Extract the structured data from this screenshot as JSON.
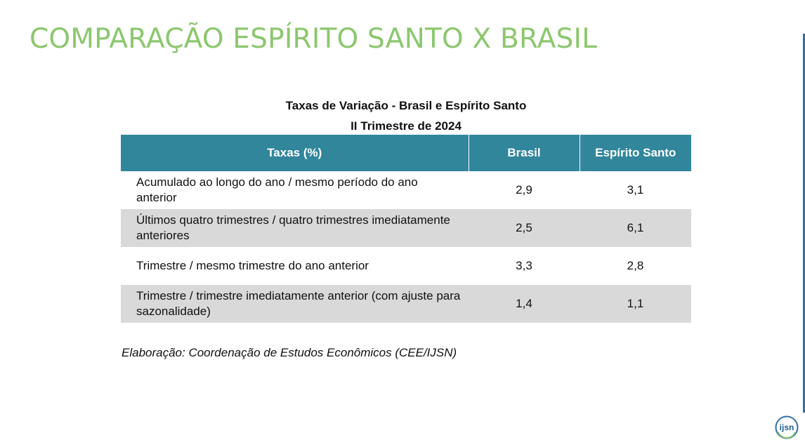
{
  "slide": {
    "title": "COMPARAÇÃO ESPÍRITO SANTO X BRASIL"
  },
  "table": {
    "caption_line1": "Taxas de Variação - Brasil e Espírito Santo",
    "caption_line2": "II Trimestre de 2024",
    "headers": [
      "Taxas (%)",
      "Brasil",
      "Espírito Santo"
    ],
    "rows": [
      {
        "label": "Acumulado ao longo do ano / mesmo período do ano anterior",
        "brasil": "2,9",
        "es": "3,1"
      },
      {
        "label": "Últimos quatro trimestres / quatro trimestres imediatamente anteriores",
        "brasil": "2,5",
        "es": "6,1"
      },
      {
        "label": "Trimestre / mesmo trimestre do ano anterior",
        "brasil": "3,3",
        "es": "2,8"
      },
      {
        "label": "Trimestre / trimestre imediatamente anterior (com ajuste para sazonalidade)",
        "brasil": "1,4",
        "es": "1,1"
      }
    ]
  },
  "source": "Elaboração: Coordenação de Estudos Econômicos (CEE/IJSN)",
  "logo": {
    "text": "ijsn",
    "icon": "ijsn-logo-icon",
    "colors": {
      "ring": "#2f6fa6",
      "accent": "#8cc76f",
      "text": "#1f5f99"
    }
  }
}
